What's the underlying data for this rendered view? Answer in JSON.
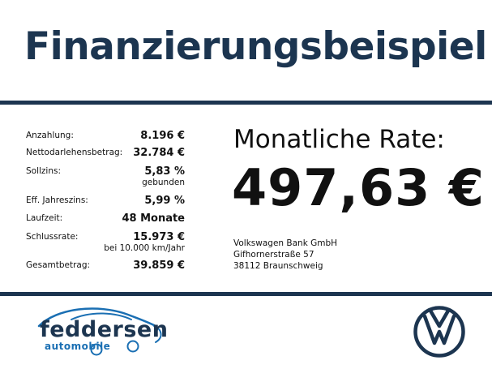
{
  "title": "Finanzierungsbeispiel",
  "terms": [
    {
      "label": "Anzahlung:",
      "value": "8.196 €",
      "sub": ""
    },
    {
      "label": "Nettodarlehensbetrag:",
      "value": "32.784 €",
      "sub": ""
    },
    {
      "label": "Sollzins:",
      "value": "5,83 %",
      "sub": "gebunden"
    },
    {
      "label": "Eff. Jahreszins:",
      "value": "5,99 %",
      "sub": ""
    },
    {
      "label": "Laufzeit:",
      "value": "48 Monate",
      "sub": ""
    },
    {
      "label": "Schlussrate:",
      "value": "15.973 €",
      "sub": "bei 10.000 km/Jahr"
    },
    {
      "label": "Gesamtbetrag:",
      "value": "39.859 €",
      "sub": ""
    }
  ],
  "rate": {
    "label": "Monatliche Rate:",
    "value": "497,63 €"
  },
  "bank": {
    "name": "Volkswagen Bank GmbH",
    "street": "Gifhornerstraße 57",
    "city": "38112 Braunschweig"
  },
  "dealer": {
    "name": "feddersen",
    "sub": "automobile"
  },
  "colors": {
    "brand_navy": "#1c3550",
    "dealer_blue": "#1a6fb3"
  },
  "icons": {
    "dealer_logo": "car-swoosh-icon",
    "brand_logo": "vw-logo-icon"
  }
}
